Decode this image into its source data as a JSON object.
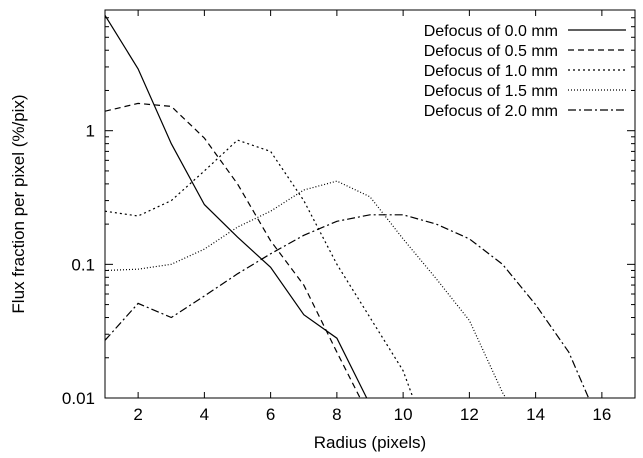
{
  "chart_data": {
    "type": "line",
    "xlabel": "Radius (pixels)",
    "ylabel": "Flux fraction per pixel (%/pix)",
    "xlim": [
      1,
      17
    ],
    "ylim": [
      0.01,
      8
    ],
    "yscale": "log",
    "x_ticks": [
      2,
      4,
      6,
      8,
      10,
      12,
      14,
      16
    ],
    "y_ticks": [
      {
        "value": 0.01,
        "label": "0.01"
      },
      {
        "value": 0.1,
        "label": "0.1"
      },
      {
        "value": 1,
        "label": "1"
      }
    ],
    "grid": false,
    "legend_position": "top-right",
    "series": [
      {
        "name": "Defocus of 0.0 mm",
        "dash": "",
        "points": [
          [
            1,
            7.3
          ],
          [
            2,
            2.9
          ],
          [
            3,
            0.8
          ],
          [
            4,
            0.28
          ],
          [
            5,
            0.16
          ],
          [
            6,
            0.095
          ],
          [
            7,
            0.042
          ],
          [
            8,
            0.028
          ],
          [
            8.9,
            0.01
          ]
        ]
      },
      {
        "name": "Defocus of 0.5 mm",
        "dash": "6,4",
        "points": [
          [
            1,
            1.4
          ],
          [
            2,
            1.6
          ],
          [
            3,
            1.52
          ],
          [
            4,
            0.88
          ],
          [
            5,
            0.4
          ],
          [
            6,
            0.15
          ],
          [
            7,
            0.07
          ],
          [
            8,
            0.022
          ],
          [
            8.7,
            0.01
          ]
        ]
      },
      {
        "name": "Defocus of 1.0 mm",
        "dash": "2,3",
        "points": [
          [
            1,
            0.25
          ],
          [
            2,
            0.23
          ],
          [
            3,
            0.3
          ],
          [
            4,
            0.5
          ],
          [
            5,
            0.85
          ],
          [
            6,
            0.7
          ],
          [
            7,
            0.3
          ],
          [
            8,
            0.1
          ],
          [
            9,
            0.04
          ],
          [
            10,
            0.016
          ],
          [
            10.3,
            0.01
          ]
        ]
      },
      {
        "name": "Defocus of 1.5 mm",
        "dash": "1,2",
        "points": [
          [
            1,
            0.09
          ],
          [
            2,
            0.092
          ],
          [
            3,
            0.1
          ],
          [
            4,
            0.13
          ],
          [
            5,
            0.19
          ],
          [
            6,
            0.25
          ],
          [
            7,
            0.36
          ],
          [
            8,
            0.42
          ],
          [
            9,
            0.32
          ],
          [
            10,
            0.155
          ],
          [
            11,
            0.078
          ],
          [
            12,
            0.038
          ],
          [
            13,
            0.011
          ],
          [
            13.1,
            0.01
          ]
        ]
      },
      {
        "name": "Defocus of 2.0 mm",
        "dash": "8,3,2,3",
        "points": [
          [
            1,
            0.027
          ],
          [
            2,
            0.051
          ],
          [
            3,
            0.04
          ],
          [
            4,
            0.058
          ],
          [
            5,
            0.085
          ],
          [
            6,
            0.12
          ],
          [
            7,
            0.165
          ],
          [
            8,
            0.21
          ],
          [
            9,
            0.235
          ],
          [
            10,
            0.235
          ],
          [
            11,
            0.2
          ],
          [
            12,
            0.155
          ],
          [
            13,
            0.1
          ],
          [
            14,
            0.05
          ],
          [
            15,
            0.022
          ],
          [
            15.6,
            0.01
          ]
        ]
      }
    ]
  }
}
